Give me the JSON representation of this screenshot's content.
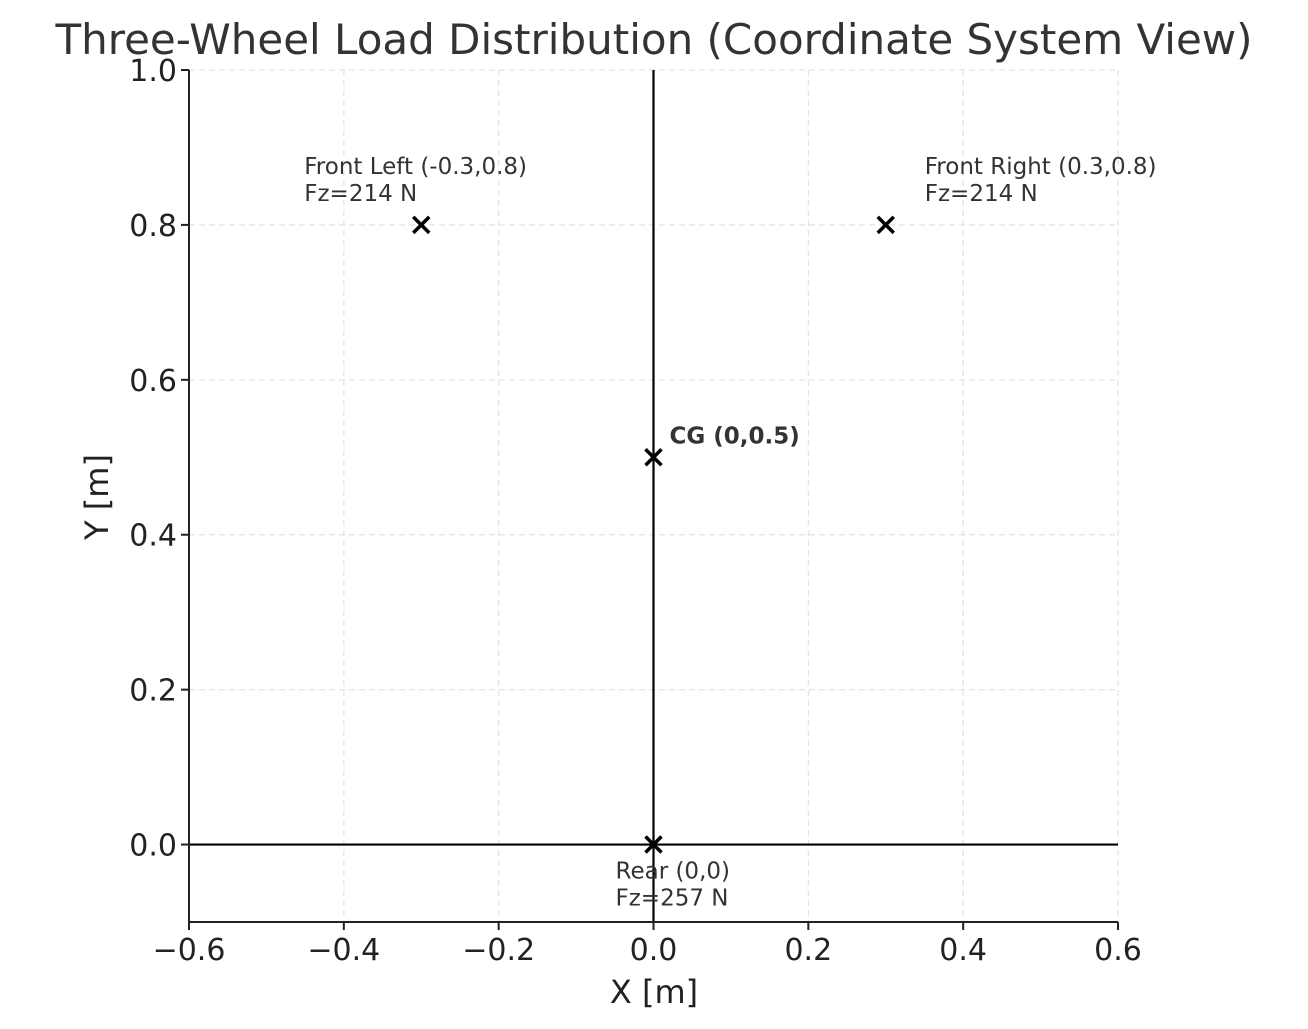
{
  "chart_data": {
    "type": "scatter",
    "title": "Three-Wheel Load Distribution (Coordinate System View)",
    "xlabel": "X [m]",
    "ylabel": "Y [m]",
    "xlim": [
      -0.6,
      0.6
    ],
    "ylim": [
      -0.1,
      1.0
    ],
    "grid": true,
    "grid_style": "dashed",
    "marker": "x",
    "marker_color": "#000000",
    "x_ticks": [
      -0.6,
      -0.4,
      -0.2,
      0.0,
      0.2,
      0.4,
      0.6
    ],
    "x_tick_labels": [
      "−0.6",
      "−0.4",
      "−0.2",
      "0.0",
      "0.2",
      "0.4",
      "0.6"
    ],
    "y_ticks": [
      0.0,
      0.2,
      0.4,
      0.6,
      0.8,
      1.0
    ],
    "y_tick_labels": [
      "0.0",
      "0.2",
      "0.4",
      "0.6",
      "0.8",
      "1.0"
    ],
    "reference_lines": [
      {
        "orientation": "vertical",
        "x": 0
      },
      {
        "orientation": "horizontal",
        "y": 0
      }
    ],
    "points": [
      {
        "x": -0.3,
        "y": 0.8,
        "lines": [
          "Front Left (-0.3,0.8)",
          "Fz=214 N"
        ],
        "bold": false,
        "label_position": "above"
      },
      {
        "x": 0.3,
        "y": 0.8,
        "lines": [
          "Front Right (0.3,0.8)",
          "Fz=214 N"
        ],
        "bold": false,
        "label_position": "above-right"
      },
      {
        "x": 0.0,
        "y": 0.0,
        "lines": [
          "Rear (0,0)",
          "Fz=257 N"
        ],
        "bold": false,
        "label_position": "below"
      },
      {
        "x": 0.0,
        "y": 0.5,
        "lines": [
          "CG (0,0.5)"
        ],
        "bold": true,
        "label_position": "right"
      }
    ]
  }
}
